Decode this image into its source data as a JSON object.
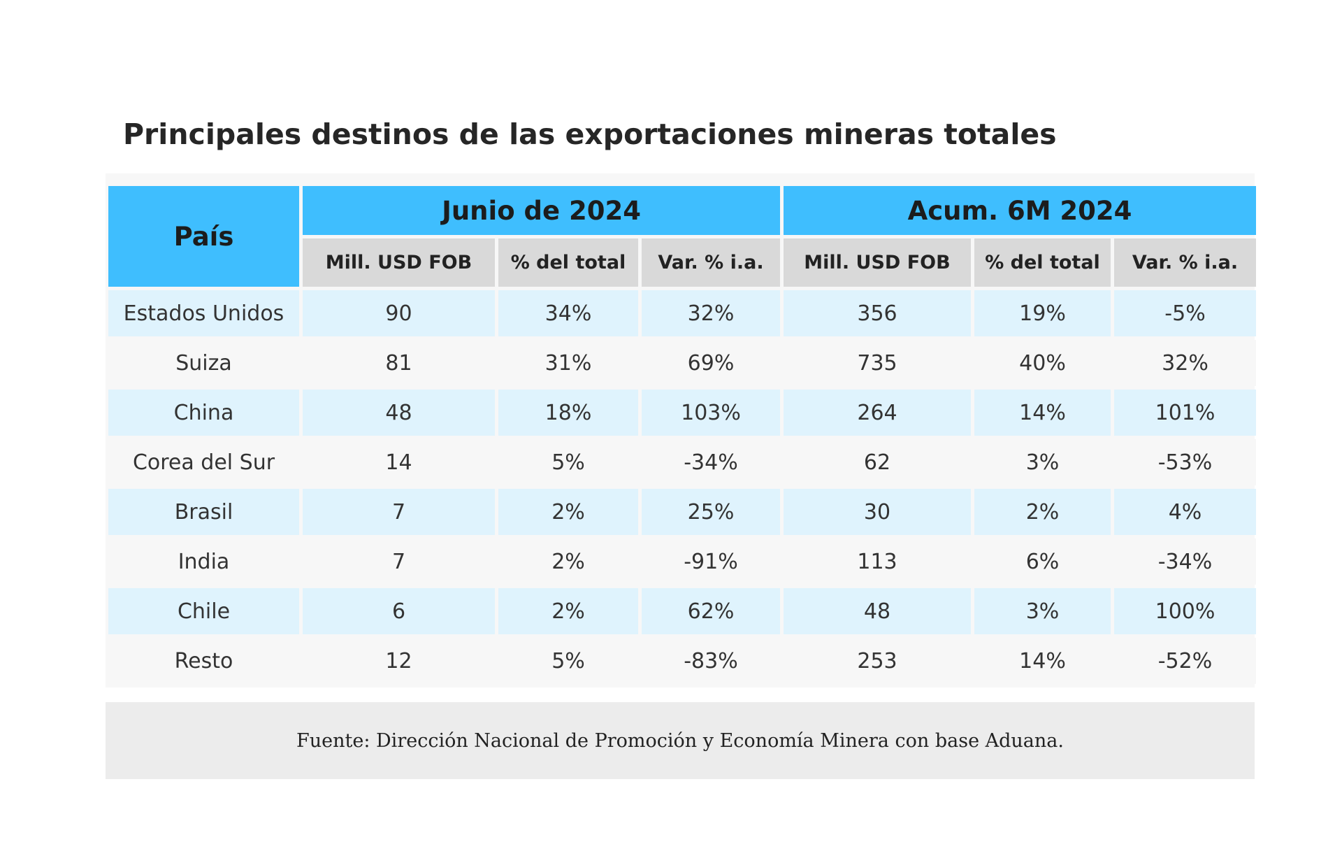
{
  "chart_data": {
    "type": "table",
    "title": "Principales destinos de las exportaciones mineras totales",
    "row_header": "País",
    "column_groups": [
      {
        "label": "Junio de 2024",
        "columns": [
          "Mill. USD FOB",
          "% del total",
          "Var. % i.a."
        ]
      },
      {
        "label": "Acum. 6M 2024",
        "columns": [
          "Mill. USD FOB",
          "% del total",
          "Var. % i.a."
        ]
      }
    ],
    "rows": [
      {
        "country": "Estados Unidos",
        "values": [
          "90",
          "34%",
          "32%",
          "356",
          "19%",
          "-5%"
        ]
      },
      {
        "country": "Suiza",
        "values": [
          "81",
          "31%",
          "69%",
          "735",
          "40%",
          "32%"
        ]
      },
      {
        "country": "China",
        "values": [
          "48",
          "18%",
          "103%",
          "264",
          "14%",
          "101%"
        ]
      },
      {
        "country": "Corea del Sur",
        "values": [
          "14",
          "5%",
          "-34%",
          "62",
          "3%",
          "-53%"
        ]
      },
      {
        "country": "Brasil",
        "values": [
          "7",
          "2%",
          "25%",
          "30",
          "2%",
          "4%"
        ]
      },
      {
        "country": "India",
        "values": [
          "7",
          "2%",
          "-91%",
          "113",
          "6%",
          "-34%"
        ]
      },
      {
        "country": "Chile",
        "values": [
          "6",
          "2%",
          "62%",
          "48",
          "3%",
          "100%"
        ]
      },
      {
        "country": "Resto",
        "values": [
          "12",
          "5%",
          "-83%",
          "253",
          "14%",
          "-52%"
        ]
      }
    ],
    "source": "Fuente: Dirección Nacional de Promoción y Economía Minera con base Aduana."
  },
  "colors": {
    "header_blue": "#3fbefe",
    "subheader_gray": "#d9d9d9",
    "row_light_blue": "#dff3fd",
    "row_light_gray": "#f7f7f7",
    "source_gray": "#ececec"
  }
}
